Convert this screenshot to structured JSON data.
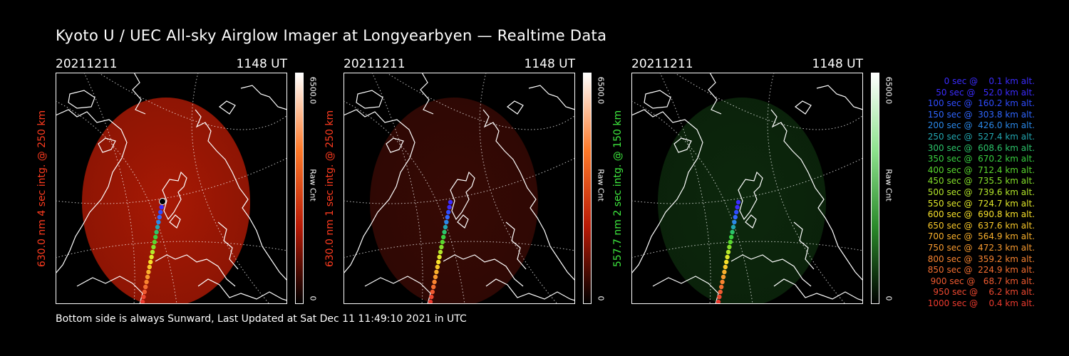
{
  "title": "Kyoto U / UEC All-sky Airglow Imager at Longyearbyen — Realtime Data",
  "footer": "Bottom side is always Sunward, Last Updated at Sat Dec 11 11:49:10 2021 in UTC",
  "panels": [
    {
      "date": "20211211",
      "time": "1148 UT",
      "ylabel": "630.0 nm 4 sec intg. @ 250 km",
      "label_color": "#ff3b1f",
      "cbar_max": "6500.0",
      "cbar_unit": "Raw Cnt",
      "cbar_min": "0",
      "image_color": "#b01a05",
      "image_opacity": 0.95,
      "cbar_colors": [
        "#ffffff",
        "#ff7a2a",
        "#b81a06",
        "#000000"
      ]
    },
    {
      "date": "20211211",
      "time": "1148 UT",
      "ylabel": "630.0 nm 1 sec intg. @ 250 km",
      "label_color": "#ff3b1f",
      "cbar_max": "6500.0",
      "cbar_unit": "Raw Cnt",
      "cbar_min": "0",
      "image_color": "#3a0a05",
      "image_opacity": 0.95,
      "cbar_colors": [
        "#ffffff",
        "#ff7a2a",
        "#b81a06",
        "#000000"
      ]
    },
    {
      "date": "20211211",
      "time": "1148 UT",
      "ylabel": "557.7 nm 2 sec intg. @ 150 km",
      "label_color": "#3ee83e",
      "cbar_max": "6500.0",
      "cbar_unit": "Raw Cnt",
      "cbar_min": "0",
      "image_color": "#0d2a0d",
      "image_opacity": 0.95,
      "cbar_colors": [
        "#ffffff",
        "#8ee28e",
        "#2a8a2a",
        "#000000"
      ]
    }
  ],
  "legend": [
    {
      "text": "   0 sec @    0.1 km alt.",
      "color": "#3b2bff"
    },
    {
      "text": "  50 sec @   52.0 km alt.",
      "color": "#3b2bff"
    },
    {
      "text": " 100 sec @  160.2 km alt.",
      "color": "#2f4cff"
    },
    {
      "text": " 150 sec @  303.8 km alt.",
      "color": "#2f66ff"
    },
    {
      "text": " 200 sec @  426.0 km alt.",
      "color": "#2a88e8"
    },
    {
      "text": " 250 sec @  527.4 km alt.",
      "color": "#22a6b0"
    },
    {
      "text": " 300 sec @  608.6 km alt.",
      "color": "#2cc46a"
    },
    {
      "text": " 350 sec @  670.2 km alt.",
      "color": "#38d040"
    },
    {
      "text": " 400 sec @  712.4 km alt.",
      "color": "#5ad82e"
    },
    {
      "text": " 450 sec @  735.5 km alt.",
      "color": "#84e02a"
    },
    {
      "text": " 500 sec @  739.6 km alt.",
      "color": "#b4e82a"
    },
    {
      "text": " 550 sec @  724.7 km alt.",
      "color": "#e0e82a"
    },
    {
      "text": " 600 sec @  690.8 km alt.",
      "color": "#f6e02a"
    },
    {
      "text": " 650 sec @  637.6 km alt.",
      "color": "#f8c82a"
    },
    {
      "text": " 700 sec @  564.9 km alt.",
      "color": "#f8b02c"
    },
    {
      "text": " 750 sec @  472.3 km alt.",
      "color": "#f89a2e"
    },
    {
      "text": " 800 sec @  359.2 km alt.",
      "color": "#f88430"
    },
    {
      "text": " 850 sec @  224.9 km alt.",
      "color": "#f46e30"
    },
    {
      "text": " 900 sec @   68.7 km alt.",
      "color": "#f05a30"
    },
    {
      "text": " 950 sec @    6.2 km alt.",
      "color": "#ee4830"
    },
    {
      "text": "1000 sec @    0.4 km alt.",
      "color": "#ec3a2e"
    }
  ]
}
